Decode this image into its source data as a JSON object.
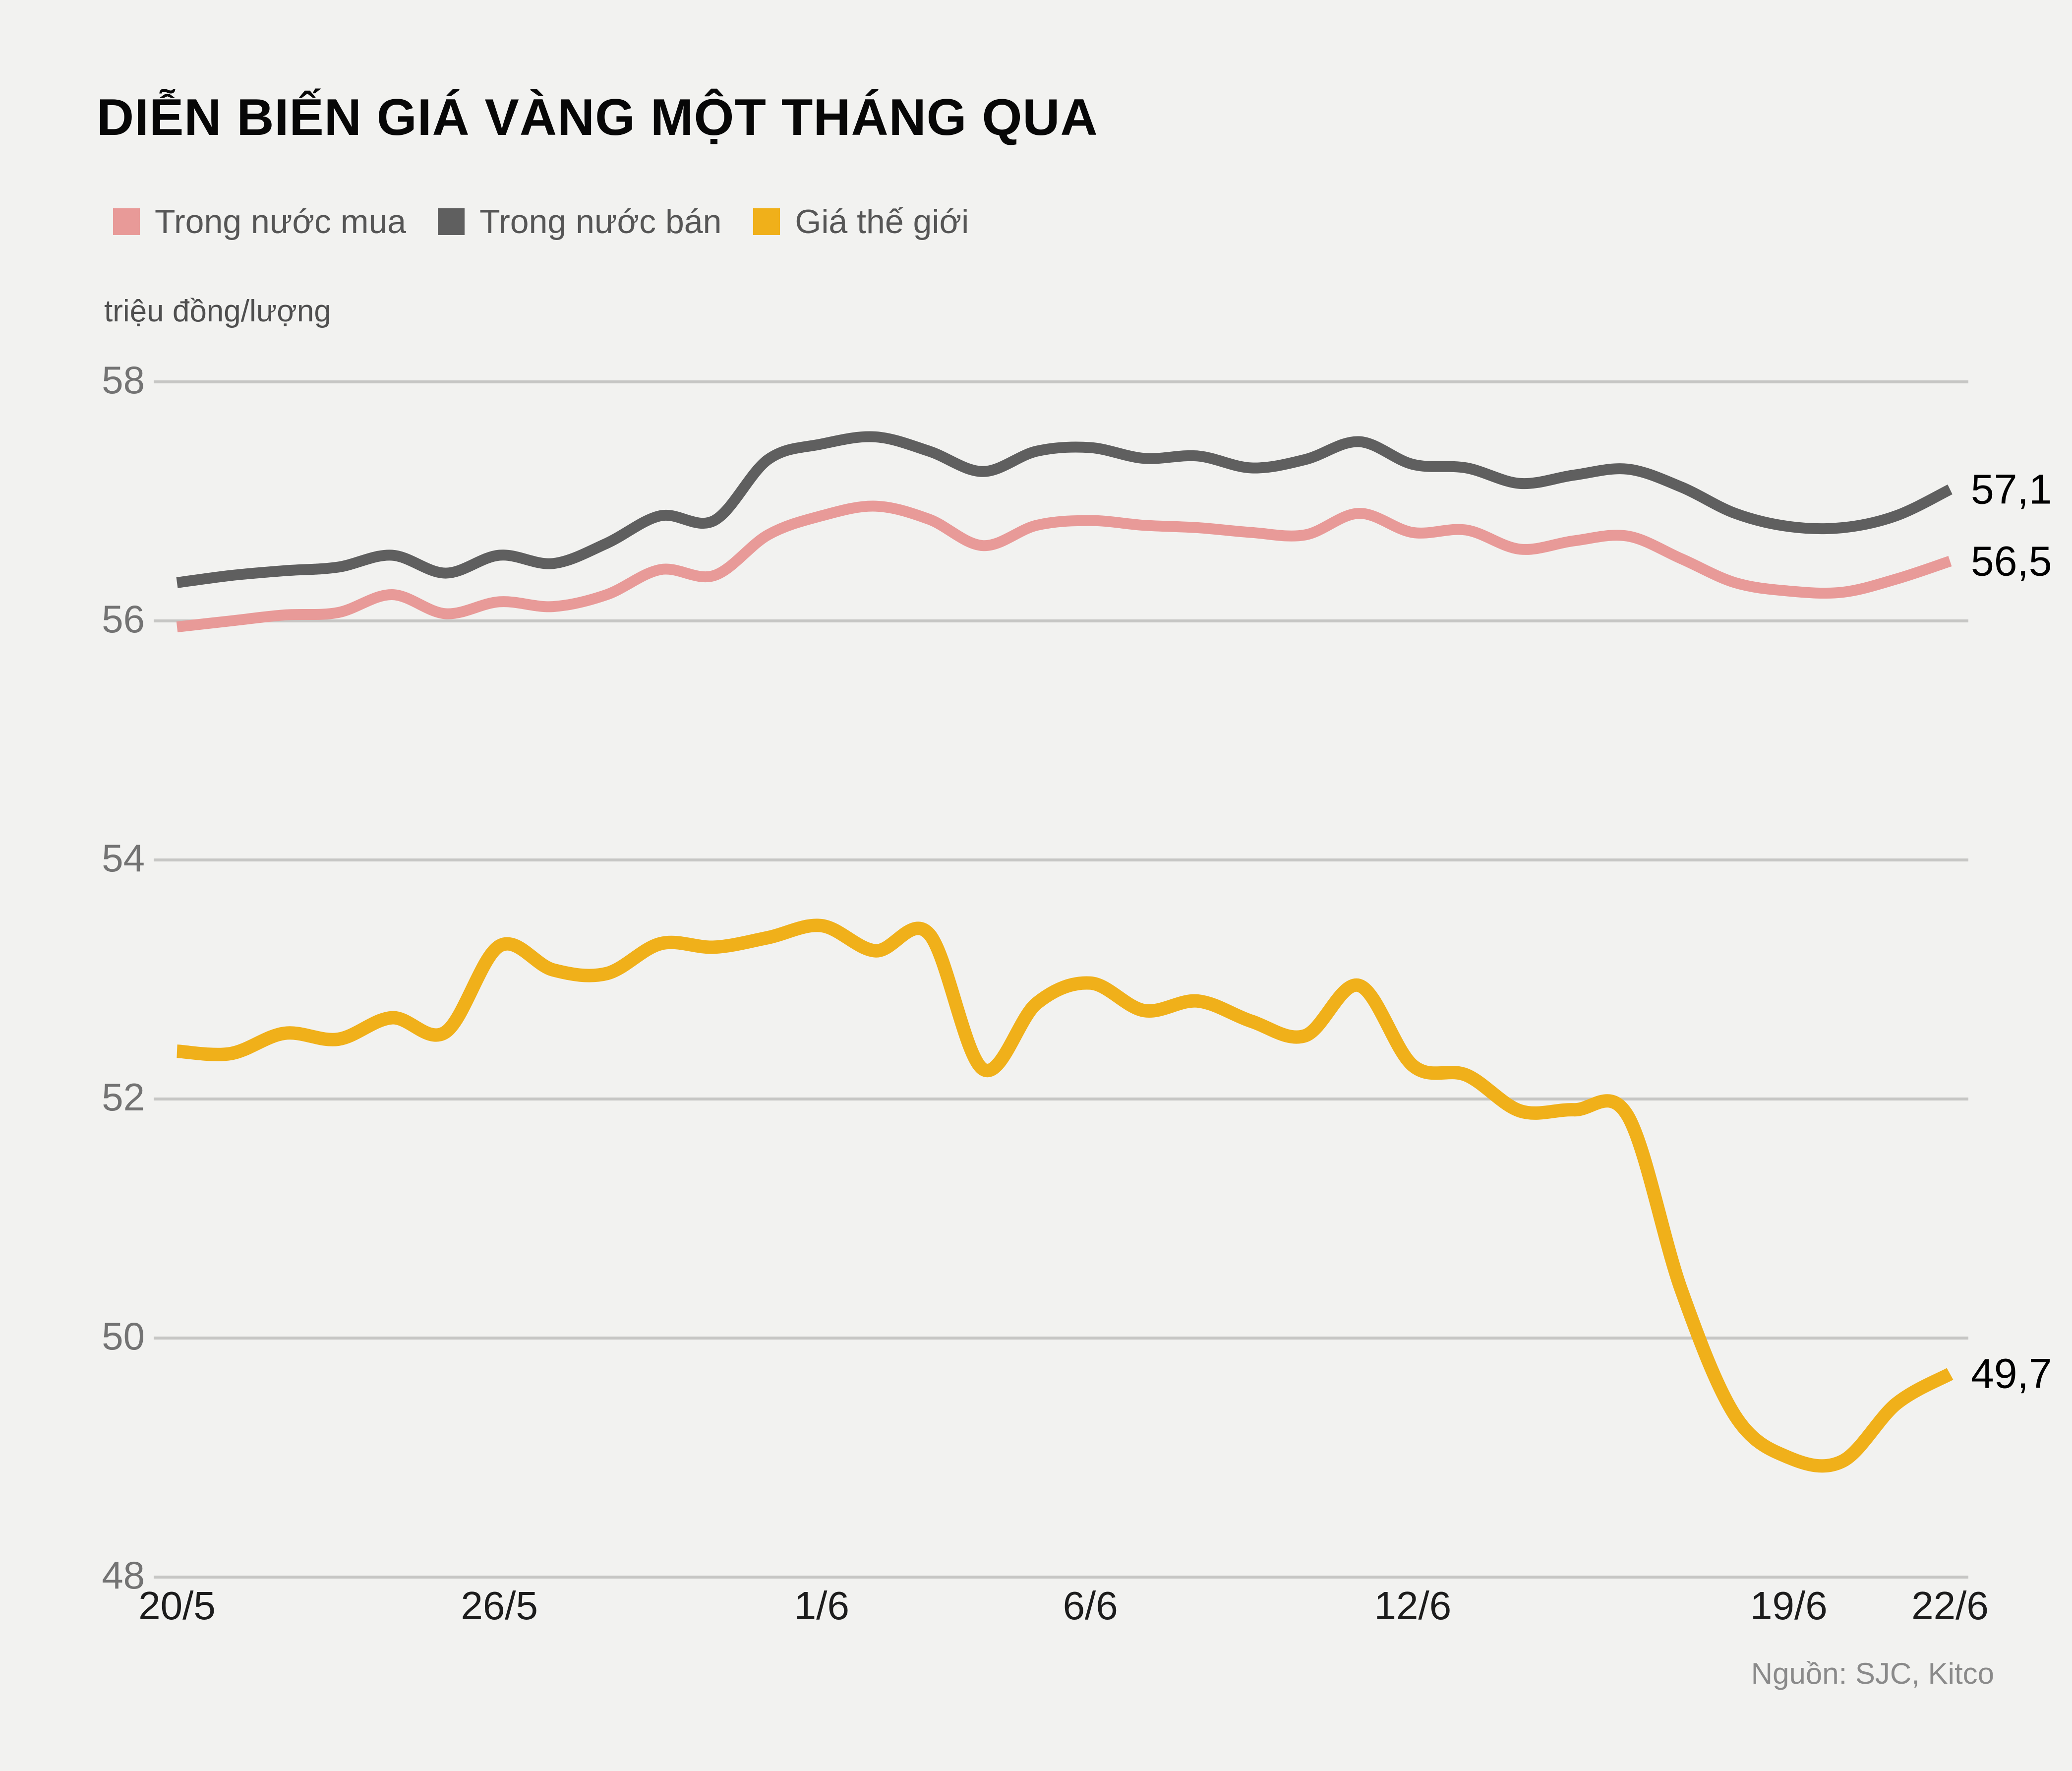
{
  "header": {
    "title": "DIỄN BIẾN GIÁ VÀNG MỘT THÁNG QUA"
  },
  "legend": {
    "items": [
      {
        "label": "Trong nước mua",
        "color": "#e89a98"
      },
      {
        "label": "Trong nước bán",
        "color": "#5f5f5f"
      },
      {
        "label": "Giá thế giới",
        "color": "#f0b01a"
      }
    ]
  },
  "colors": {
    "background": "#f2f2f0",
    "gridline": "#c6c6c4",
    "ytick_text": "#737373",
    "xtick_text": "#1c1c1c",
    "buy_line": "#e89a98",
    "sell_line": "#5f5f5f",
    "world_line": "#f0b01a"
  },
  "source_text": "Nguồn: SJC, Kitco",
  "chart_data": {
    "type": "line",
    "title": "DIỄN BIẾN GIÁ VÀNG MỘT THÁNG QUA",
    "unit_label": "triệu đồng/lượng",
    "ylim": [
      48,
      58
    ],
    "yticks": [
      "58",
      "56",
      "54",
      "52",
      "50",
      "48"
    ],
    "ytick_values": [
      58,
      56,
      54,
      52,
      50,
      48
    ],
    "grid": true,
    "legend_position": "top-left",
    "n_points": 34,
    "x_tick_labels": [
      "20/5",
      "26/5",
      "1/6",
      "6/6",
      "12/6",
      "19/6",
      "22/6"
    ],
    "x_tick_indices": [
      0,
      6,
      12,
      17,
      23,
      30,
      33
    ],
    "series": [
      {
        "name": "Giá thế giới",
        "color": "#f0b01a",
        "width": 27,
        "end_label": "49,7",
        "end_value": 49.7,
        "values": [
          52.4,
          52.38,
          52.55,
          52.5,
          52.68,
          52.56,
          53.28,
          53.08,
          53.05,
          53.3,
          53.27,
          53.35,
          53.45,
          53.24,
          53.38,
          52.25,
          52.8,
          52.97,
          52.74,
          52.82,
          52.65,
          52.53,
          52.95,
          52.28,
          52.2,
          51.9,
          51.91,
          51.86,
          50.4,
          49.35,
          49.0,
          48.97,
          49.45,
          49.7
        ]
      },
      {
        "name": "Trong nước bán",
        "color": "#5f5f5f",
        "width": 22,
        "end_label": "57,1",
        "end_value": 57.1,
        "values": [
          56.32,
          56.38,
          56.42,
          56.45,
          56.55,
          56.4,
          56.55,
          56.48,
          56.65,
          56.88,
          56.84,
          57.35,
          57.48,
          57.54,
          57.42,
          57.25,
          57.42,
          57.45,
          57.36,
          57.38,
          57.28,
          57.35,
          57.5,
          57.31,
          57.28,
          57.15,
          57.22,
          57.27,
          57.12,
          56.9,
          56.79,
          56.78,
          56.88,
          57.1
        ]
      },
      {
        "name": "Trong nước mua",
        "color": "#e89a98",
        "width": 22,
        "end_label": "56,5",
        "end_value": 56.5,
        "values": [
          55.95,
          56.0,
          56.05,
          56.07,
          56.22,
          56.06,
          56.16,
          56.12,
          56.22,
          56.43,
          56.38,
          56.72,
          56.88,
          56.96,
          56.85,
          56.63,
          56.8,
          56.84,
          56.8,
          56.78,
          56.74,
          56.72,
          56.9,
          56.74,
          56.76,
          56.6,
          56.67,
          56.71,
          56.52,
          56.32,
          56.25,
          56.24,
          56.35,
          56.5
        ]
      }
    ]
  }
}
